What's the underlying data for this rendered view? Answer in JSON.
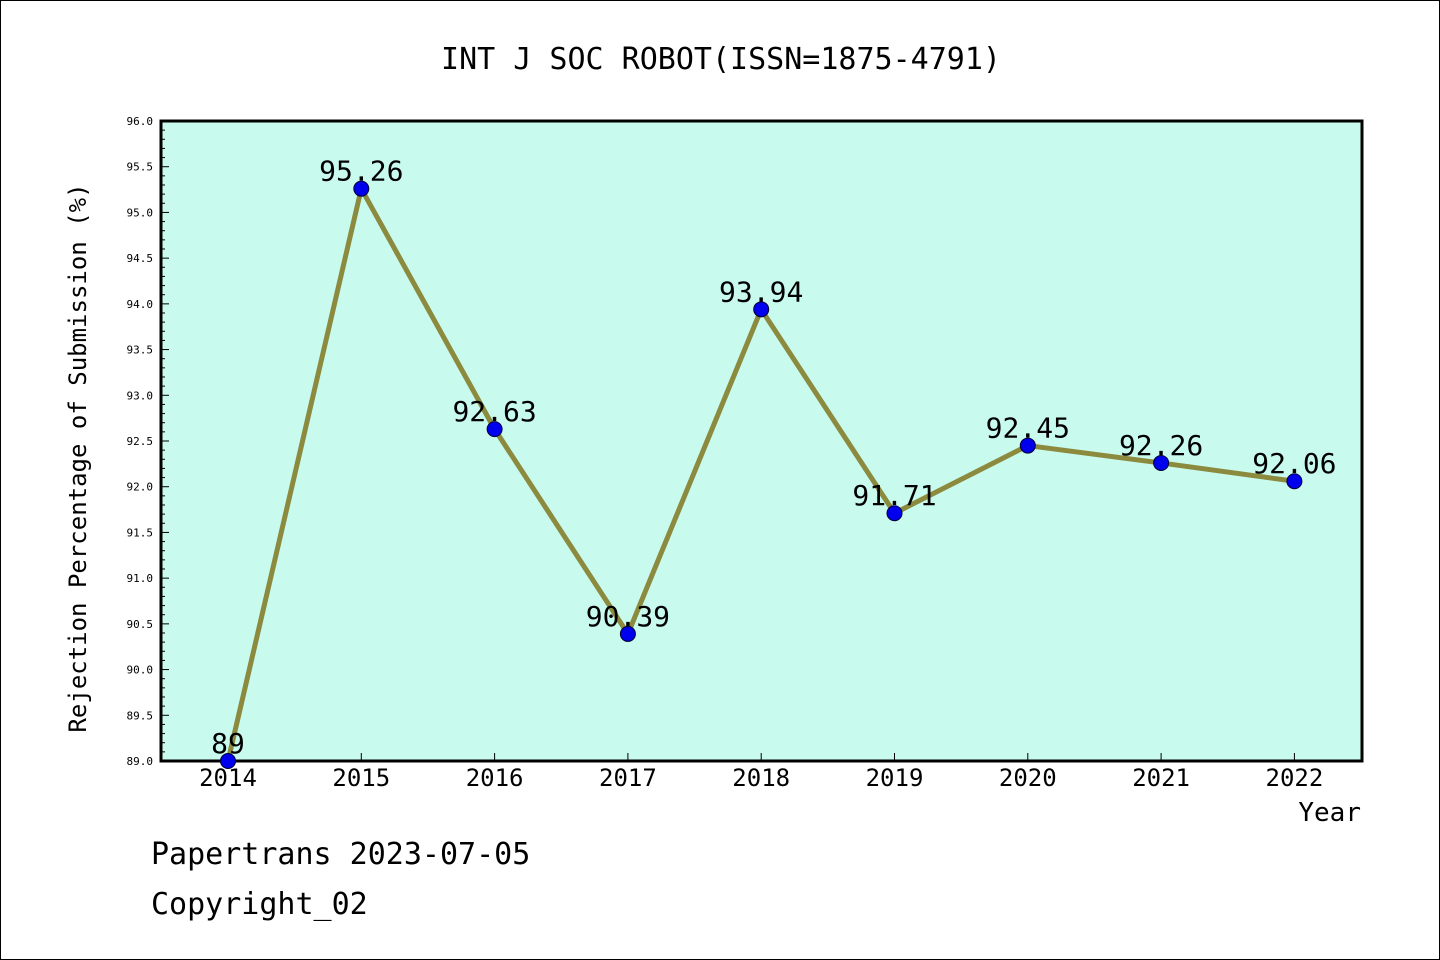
{
  "chart_data": {
    "type": "line",
    "title": "INT J SOC ROBOT(ISSN=1875-4791)",
    "xlabel": "Year",
    "ylabel": "Rejection Percentage of Submission (%)",
    "categories": [
      "2014",
      "2015",
      "2016",
      "2017",
      "2018",
      "2019",
      "2020",
      "2021",
      "2022"
    ],
    "values": [
      89,
      95.26,
      92.63,
      90.39,
      93.94,
      91.71,
      92.45,
      92.26,
      92.06
    ],
    "data_labels": [
      "89",
      "95.26",
      "92.63",
      "90.39",
      "93.94",
      "91.71",
      "92.45",
      "92.26",
      "92.06"
    ],
    "ylim": [
      89.0,
      96.0
    ],
    "yticks": [
      "89.0",
      "89.5",
      "90.0",
      "90.5",
      "91.0",
      "91.5",
      "92.0",
      "92.5",
      "93.0",
      "93.5",
      "94.0",
      "94.5",
      "95.0",
      "95.5",
      "96.0"
    ],
    "grid": false,
    "colors": {
      "plot_background": "#c8fbee",
      "line": "#8b8a3e",
      "marker": "#0000ee",
      "axes": "#000000"
    }
  },
  "footer": {
    "line1": "Papertrans 2023-07-05",
    "line2": "Copyright_02"
  }
}
